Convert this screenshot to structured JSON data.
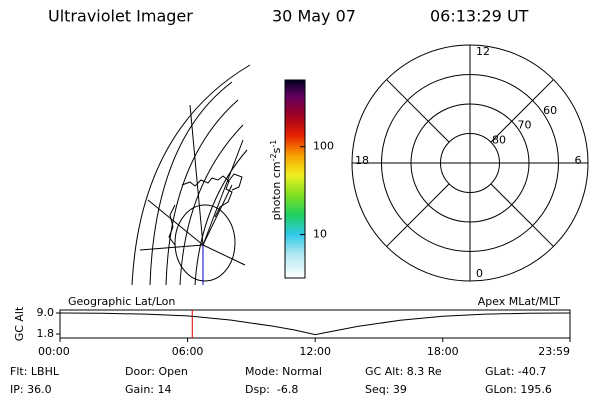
{
  "header": {
    "title": "Ultraviolet Imager",
    "date": "30 May 07",
    "time": "06:13:29 UT"
  },
  "colorbar": {
    "label": {
      "text": "photon cm",
      "sup1": "-2",
      "mid": "s",
      "sup2": "-1"
    },
    "lim": [
      3.2,
      575
    ],
    "log": true,
    "ticks": [
      10,
      100
    ]
  },
  "polar": {
    "lat_lim": [
      50,
      90
    ],
    "lat_ticks": [
      60,
      70,
      80
    ],
    "mlt_ticks": [
      0,
      6,
      12,
      18
    ]
  },
  "altitude_plot": {
    "ylabel": "GC Alt",
    "left_label": "Geographic Lat/Lon",
    "right_label": "Apex MLat/MLT",
    "xlim": [
      0,
      23.983
    ],
    "ylim": [
      1.8,
      9.0
    ],
    "xticks": [
      {
        "value": 0,
        "label": "00:00"
      },
      {
        "value": 6,
        "label": "06:00"
      },
      {
        "value": 12,
        "label": "12:00"
      },
      {
        "value": 18,
        "label": "18:00"
      },
      {
        "value": 23.983,
        "label": "23:59"
      }
    ],
    "yticks": [
      {
        "value": 9,
        "label": "9.0"
      },
      1.8
    ],
    "x": [
      0,
      2,
      4,
      6,
      8,
      10,
      11,
      12,
      13,
      14,
      16,
      18,
      20,
      22,
      23.983
    ],
    "values": [
      9.0,
      8.9,
      8.6,
      8.0,
      6.6,
      4.5,
      3.2,
      1.6,
      3.0,
      4.4,
      6.5,
      7.9,
      8.6,
      8.9,
      9.0
    ],
    "marker_x": 6.22,
    "marker_color": "#e00000"
  },
  "footer": {
    "rows": [
      [
        "Flt: LBHL",
        "Door: Open",
        "Mode: Normal",
        "GC Alt: 8.3 Re",
        "GLat: -40.7"
      ],
      [
        "IP: 36.0",
        "Gain: 14",
        "Dsp:  -6.8",
        "Seq: 39",
        "GLon: 195.6"
      ]
    ]
  }
}
